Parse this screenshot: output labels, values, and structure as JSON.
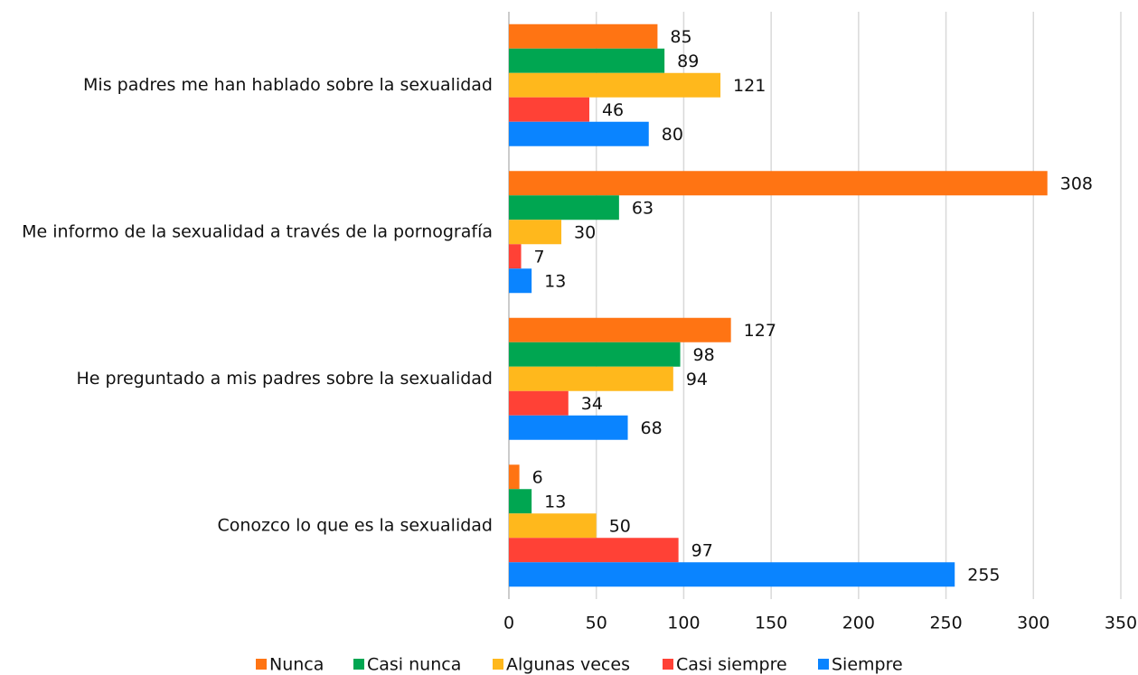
{
  "chart_data": {
    "type": "hbar",
    "categories": [
      "Mis padres me han hablado sobre la sexualidad",
      "Me informo de la sexualidad a través de la pornografía",
      "He preguntado a mis padres sobre la sexualidad",
      "Conozco lo que es la sexualidad"
    ],
    "series": [
      {
        "name": "Nunca",
        "color": "#ff7413",
        "values": [
          85,
          308,
          127,
          6
        ]
      },
      {
        "name": "Casi nunca",
        "color": "#00a651",
        "values": [
          89,
          63,
          98,
          13
        ]
      },
      {
        "name": "Algunas veces",
        "color": "#ffb81c",
        "values": [
          121,
          30,
          94,
          50
        ]
      },
      {
        "name": "Casi siempre",
        "color": "#ff4136",
        "values": [
          46,
          7,
          34,
          97
        ]
      },
      {
        "name": "Siempre",
        "color": "#0a84ff",
        "values": [
          80,
          13,
          68,
          255
        ]
      }
    ],
    "xlim": [
      0,
      350
    ],
    "xticks": [
      0,
      50,
      100,
      150,
      200,
      250,
      300,
      350
    ],
    "grid": true,
    "legend": "bottom"
  }
}
